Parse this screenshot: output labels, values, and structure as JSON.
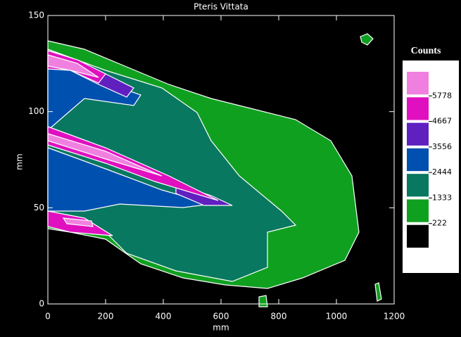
{
  "chart_data": {
    "type": "contour",
    "title": "Pteris Vittata",
    "x_label": "mm",
    "y_label": "mm",
    "xlim": [
      0,
      1200
    ],
    "ylim": [
      0,
      150
    ],
    "xticks": [
      0,
      200,
      400,
      600,
      800,
      1000,
      1200
    ],
    "yticks": [
      0,
      50,
      100,
      150
    ],
    "colorbar": {
      "title": "Counts",
      "levels": [
        222,
        1333,
        2444,
        3556,
        4667,
        5778
      ],
      "colors": [
        "#000000",
        "#10a020",
        "#087860",
        "#0050b0",
        "#6020c0",
        "#e010c0",
        "#f080e0"
      ]
    }
  }
}
